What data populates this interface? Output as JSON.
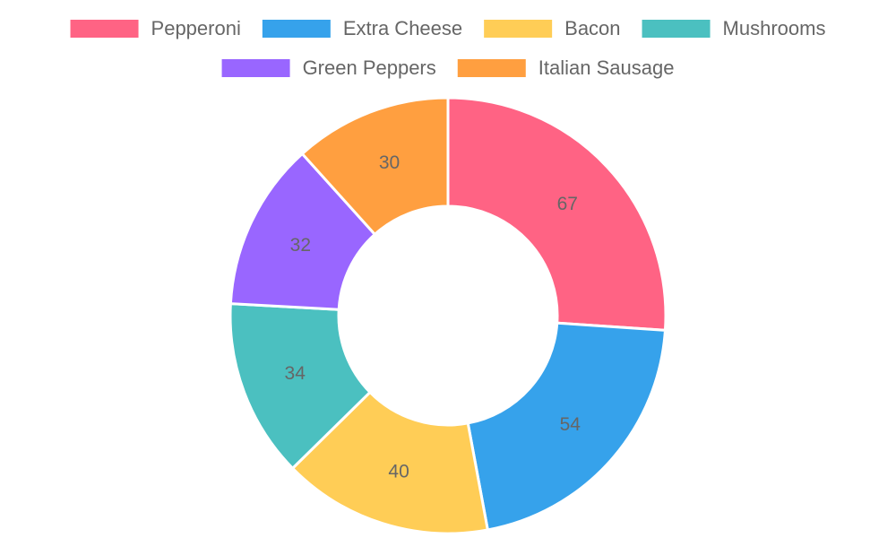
{
  "chart_data": {
    "type": "doughnut",
    "categories": [
      "Pepperoni",
      "Extra Cheese",
      "Bacon",
      "Mushrooms",
      "Green Peppers",
      "Italian Sausage"
    ],
    "values": [
      67,
      54,
      40,
      34,
      32,
      30
    ],
    "colors": [
      "#ff6384",
      "#36a2eb",
      "#ffcd56",
      "#4bc0c0",
      "#9966ff",
      "#ff9f40"
    ],
    "legend": "top"
  }
}
